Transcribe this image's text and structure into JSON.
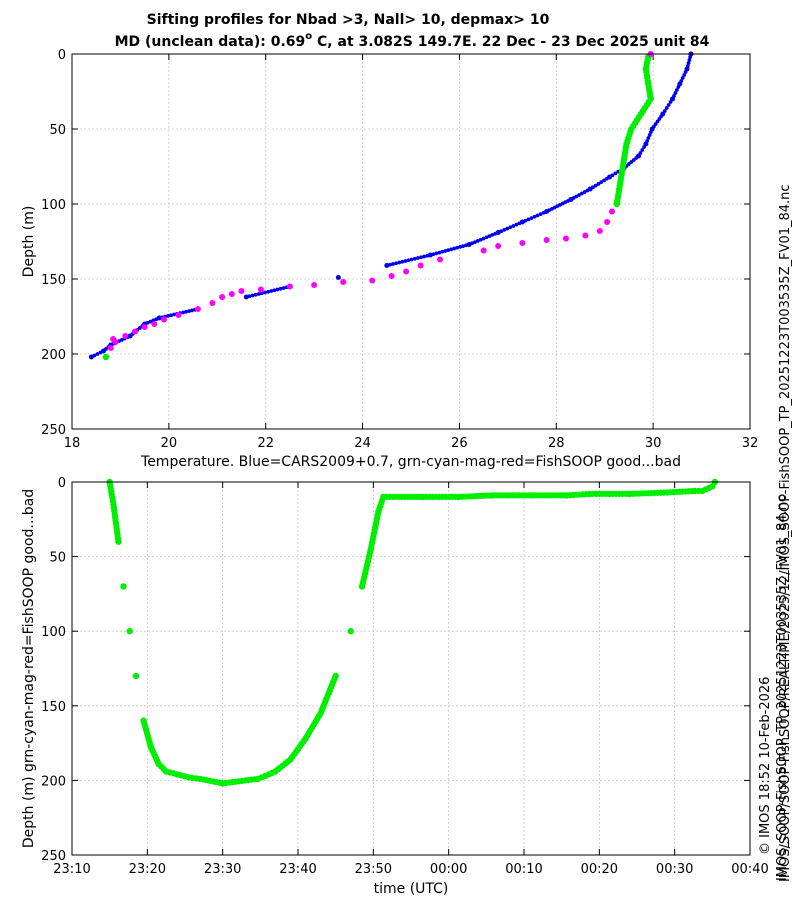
{
  "title_line1": "Sifting profiles for Nbad >3, Nall> 10, depmax> 10",
  "title_line2_prefix": "MD (unclean data): 0.69",
  "title_line2_sup": "o",
  "title_line2_suffix": " C, at 3.082S 149.7E. 22 Dec - 23 Dec 2025 unit 84",
  "side_label_right": "IMOS_SOOP-FishSOOP_TP_20251223T003535Z_FV01_84.nc",
  "side_label_footer1": "IMOS/SOOP/SOOP-FishSOOP/REALTIME/2025/12/IMOS_SOOP-FishSOOP_TP_20251223T003535Z_FV01_84.nc",
  "side_label_footer2": "© IMOS 18:52 10-Feb-2026",
  "colors": {
    "cars": "#0000ee",
    "good": "#00ee00",
    "mag": "#ff00ff",
    "grid": "#c8c8c8"
  },
  "chart_data": [
    {
      "type": "scatter",
      "xlabel": "Temperature. Blue=CARS2009+0.7, grn-cyan-mag-red=FishSOOP good...bad",
      "ylabel": "Depth (m)",
      "xlim": [
        18,
        32
      ],
      "ylim": [
        250,
        0
      ],
      "xticks": [
        "18",
        "20",
        "22",
        "24",
        "26",
        "28",
        "30",
        "32"
      ],
      "yticks": [
        "0",
        "50",
        "100",
        "150",
        "200",
        "250"
      ],
      "grid": true,
      "series": [
        {
          "name": "Blue=CARS2009+0.7",
          "color": "blue",
          "points": [
            [
              30.78,
              0
            ],
            [
              30.7,
              10
            ],
            [
              30.55,
              20
            ],
            [
              30.4,
              30
            ],
            [
              30.2,
              40
            ],
            [
              29.98,
              50
            ],
            [
              29.85,
              60
            ],
            [
              29.7,
              68
            ],
            [
              29.4,
              76
            ],
            [
              29.1,
              82
            ],
            [
              28.7,
              90
            ],
            [
              28.3,
              97
            ],
            [
              27.8,
              105
            ],
            [
              27.3,
              112
            ],
            [
              26.8,
              119
            ],
            [
              26.2,
              127
            ],
            [
              25.4,
              134
            ],
            [
              24.5,
              141
            ],
            [
              23.5,
              149
            ],
            [
              22.5,
              155
            ],
            [
              21.6,
              162
            ],
            [
              20.6,
              170
            ],
            [
              19.8,
              176
            ],
            [
              19.5,
              180
            ],
            [
              19.2,
              188
            ],
            [
              18.8,
              194
            ],
            [
              18.65,
              198
            ],
            [
              18.4,
              202
            ]
          ]
        },
        {
          "name": "FishSOOP good",
          "color": "green",
          "points": [
            [
              29.9,
              2
            ],
            [
              29.85,
              10
            ],
            [
              29.9,
              20
            ],
            [
              29.95,
              30
            ],
            [
              29.75,
              40
            ],
            [
              29.55,
              50
            ],
            [
              29.45,
              60
            ],
            [
              29.4,
              70
            ],
            [
              29.35,
              80
            ],
            [
              29.3,
              90
            ],
            [
              29.25,
              100
            ],
            [
              18.7,
              202
            ]
          ]
        },
        {
          "name": "FishSOOP mag",
          "color": "magenta",
          "points": [
            [
              29.95,
              0
            ],
            [
              29.15,
              105
            ],
            [
              29.05,
              112
            ],
            [
              28.9,
              118
            ],
            [
              28.6,
              121
            ],
            [
              28.2,
              123
            ],
            [
              27.8,
              124
            ],
            [
              27.3,
              126
            ],
            [
              26.8,
              128
            ],
            [
              26.5,
              131
            ],
            [
              25.6,
              137
            ],
            [
              25.2,
              141
            ],
            [
              24.9,
              145
            ],
            [
              24.6,
              148
            ],
            [
              24.2,
              151
            ],
            [
              23.6,
              152
            ],
            [
              23.0,
              154
            ],
            [
              22.5,
              155
            ],
            [
              21.9,
              157
            ],
            [
              21.5,
              158
            ],
            [
              21.3,
              160
            ],
            [
              21.1,
              162
            ],
            [
              20.9,
              166
            ],
            [
              20.6,
              170
            ],
            [
              20.2,
              174
            ],
            [
              19.9,
              177
            ],
            [
              19.7,
              180
            ],
            [
              19.5,
              182
            ],
            [
              19.3,
              185
            ],
            [
              19.1,
              188
            ],
            [
              18.9,
              192
            ],
            [
              18.8,
              196
            ],
            [
              18.85,
              190
            ]
          ]
        }
      ]
    },
    {
      "type": "scatter",
      "xlabel": "time (UTC)",
      "ylabel": "Depth (m) grn-cyan-mag-red=FishSOOP good...bad",
      "xlim": [
        "23:10",
        "00:40"
      ],
      "ylim": [
        250,
        0
      ],
      "xticks": [
        "23:10",
        "23:20",
        "23:30",
        "23:40",
        "23:50",
        "00:00",
        "00:10",
        "00:20",
        "00:30",
        "00:40"
      ],
      "yticks": [
        "0",
        "50",
        "100",
        "150",
        "200",
        "250"
      ],
      "grid": true,
      "series": [
        {
          "name": "FishSOOP good",
          "color": "green",
          "points": [
            [
              "23:15:00",
              0
            ],
            [
              "23:15:30",
              15
            ],
            [
              "23:16:10",
              40
            ],
            [
              "23:16:50",
              70
            ],
            [
              "23:17:40",
              100
            ],
            [
              "23:18:30",
              130
            ],
            [
              "23:19:30",
              160
            ],
            [
              "23:20:30",
              178
            ],
            [
              "23:21:30",
              189
            ],
            [
              "23:22:30",
              194
            ],
            [
              "23:24:00",
              196
            ],
            [
              "23:25:30",
              198
            ],
            [
              "23:27:00",
              199
            ],
            [
              "23:30:00",
              202
            ],
            [
              "23:34:40",
              199
            ],
            [
              "23:35:40",
              197
            ],
            [
              "23:37:00",
              194
            ],
            [
              "23:39:00",
              186
            ],
            [
              "23:41:00",
              172
            ],
            [
              "23:43:00",
              155
            ],
            [
              "23:45:00",
              130
            ],
            [
              "23:47:00",
              100
            ],
            [
              "23:48:30",
              70
            ],
            [
              "23:49:40",
              45
            ],
            [
              "23:50:40",
              20
            ],
            [
              "23:51:20",
              10
            ],
            [
              "23:56:40",
              10
            ],
            [
              "00:01:20",
              10
            ],
            [
              "00:05:40",
              9
            ],
            [
              "00:11:00",
              9
            ],
            [
              "00:15:40",
              9
            ],
            [
              "00:18:40",
              8
            ],
            [
              "00:21:20",
              8
            ],
            [
              "00:24:00",
              8
            ],
            [
              "00:29:00",
              7
            ],
            [
              "00:32:40",
              6
            ],
            [
              "00:33:40",
              6
            ],
            [
              "00:35:00",
              3
            ],
            [
              "00:35:20",
              0
            ]
          ]
        }
      ]
    }
  ]
}
